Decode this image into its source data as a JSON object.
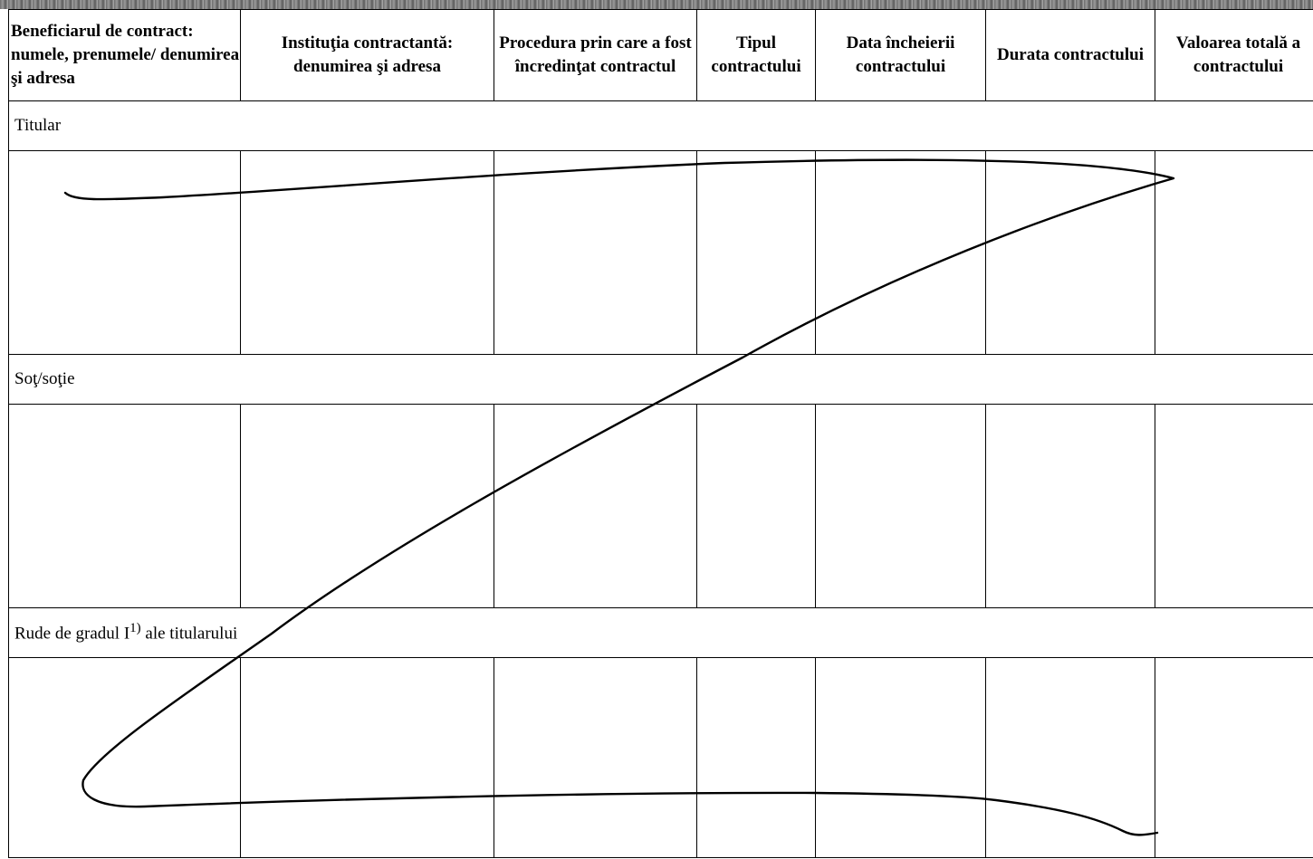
{
  "table": {
    "headers": [
      "Beneficiarul de contract: numele, prenumele/ denumirea şi adresa",
      "Instituţia contractantă: denumirea şi adresa",
      "Procedura prin care a fost încredinţat contractul",
      "Tipul contractului",
      "Data încheierii contractului",
      "Durata contractului",
      "Valoarea totală a contractului"
    ],
    "sections": {
      "titular": "Titular",
      "sot": "Soţ/soţie",
      "rude": "Rude de gradul I",
      "rude_sup": "1)",
      "rude_suffix": " ale titularului"
    }
  },
  "annotation": {
    "type": "handwritten-z-strike",
    "color": "#000000"
  }
}
